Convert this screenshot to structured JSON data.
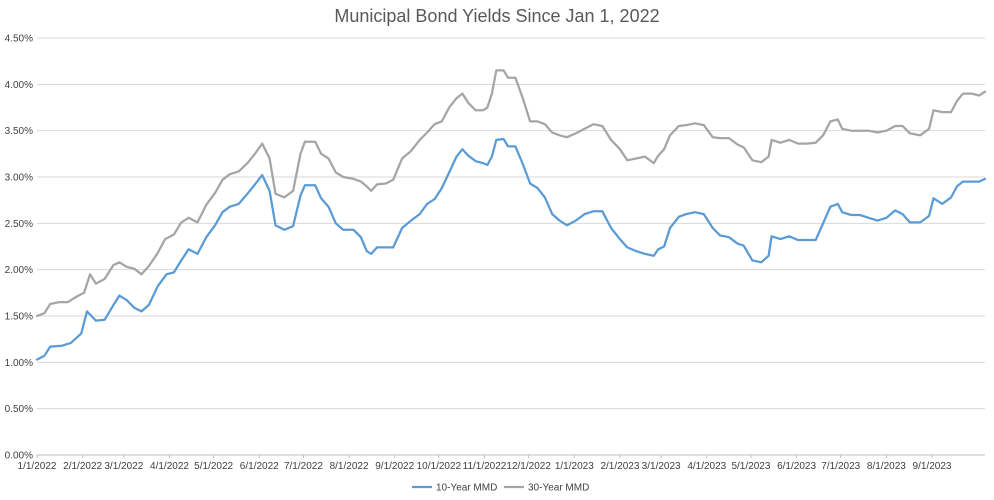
{
  "chart_data": {
    "type": "line",
    "title": "Municipal Bond Yields Since Jan 1, 2022",
    "xlabel": "",
    "ylabel": "",
    "ylim": [
      0,
      4.5
    ],
    "ytick_values": [
      0,
      0.5,
      1.0,
      1.5,
      2.0,
      2.5,
      3.0,
      3.5,
      4.0,
      4.5
    ],
    "ytick_labels": [
      "0.00%",
      "0.50%",
      "1.00%",
      "1.50%",
      "2.00%",
      "2.50%",
      "3.00%",
      "3.50%",
      "4.00%",
      "4.50%"
    ],
    "x_dates": [
      "2022-01-01",
      "2022-02-01",
      "2022-03-01",
      "2022-04-01",
      "2022-05-01",
      "2022-06-01",
      "2022-07-01",
      "2022-08-01",
      "2022-09-01",
      "2022-10-01",
      "2022-11-01",
      "2022-12-01",
      "2023-01-01",
      "2023-02-01",
      "2023-03-01",
      "2023-04-01",
      "2023-05-01",
      "2023-06-01",
      "2023-07-01",
      "2023-08-01",
      "2023-09-01"
    ],
    "xtick_labels": [
      "1/1/2022",
      "2/1/2022",
      "3/1/2022",
      "4/1/2022",
      "5/1/2022",
      "6/1/2022",
      "7/1/2022",
      "8/1/2022",
      "9/1/2022",
      "10/1/2022",
      "11/1/2022",
      "12/1/2022",
      "1/1/2023",
      "2/1/2023",
      "3/1/2023",
      "4/1/2023",
      "5/1/2023",
      "6/1/2023",
      "7/1/2023",
      "8/1/2023",
      "9/1/2023"
    ],
    "grid": true,
    "legend_position": "bottom",
    "series": [
      {
        "name": "10-Year MMD",
        "color": "#5b9bd5",
        "points": [
          [
            "2022-01-01",
            1.03
          ],
          [
            "2022-01-06",
            1.07
          ],
          [
            "2022-01-10",
            1.17
          ],
          [
            "2022-01-18",
            1.18
          ],
          [
            "2022-01-24",
            1.21
          ],
          [
            "2022-01-31",
            1.31
          ],
          [
            "2022-02-04",
            1.55
          ],
          [
            "2022-02-10",
            1.45
          ],
          [
            "2022-02-16",
            1.46
          ],
          [
            "2022-02-22",
            1.62
          ],
          [
            "2022-02-26",
            1.72
          ],
          [
            "2022-03-03",
            1.67
          ],
          [
            "2022-03-08",
            1.59
          ],
          [
            "2022-03-13",
            1.55
          ],
          [
            "2022-03-18",
            1.62
          ],
          [
            "2022-03-24",
            1.82
          ],
          [
            "2022-03-30",
            1.95
          ],
          [
            "2022-04-04",
            1.97
          ],
          [
            "2022-04-09",
            2.1
          ],
          [
            "2022-04-14",
            2.22
          ],
          [
            "2022-04-20",
            2.17
          ],
          [
            "2022-04-26",
            2.35
          ],
          [
            "2022-05-02",
            2.48
          ],
          [
            "2022-05-07",
            2.62
          ],
          [
            "2022-05-12",
            2.68
          ],
          [
            "2022-05-18",
            2.71
          ],
          [
            "2022-05-24",
            2.82
          ],
          [
            "2022-05-29",
            2.92
          ],
          [
            "2022-06-03",
            3.02
          ],
          [
            "2022-06-08",
            2.85
          ],
          [
            "2022-06-12",
            2.48
          ],
          [
            "2022-06-18",
            2.43
          ],
          [
            "2022-06-24",
            2.47
          ],
          [
            "2022-06-29",
            2.8
          ],
          [
            "2022-07-02",
            2.91
          ],
          [
            "2022-07-09",
            2.91
          ],
          [
            "2022-07-13",
            2.77
          ],
          [
            "2022-07-18",
            2.68
          ],
          [
            "2022-07-23",
            2.5
          ],
          [
            "2022-07-28",
            2.43
          ],
          [
            "2022-08-04",
            2.43
          ],
          [
            "2022-08-09",
            2.35
          ],
          [
            "2022-08-13",
            2.2
          ],
          [
            "2022-08-16",
            2.17
          ],
          [
            "2022-08-20",
            2.24
          ],
          [
            "2022-08-26",
            2.24
          ],
          [
            "2022-08-31",
            2.24
          ],
          [
            "2022-09-06",
            2.45
          ],
          [
            "2022-09-12",
            2.53
          ],
          [
            "2022-09-18",
            2.6
          ],
          [
            "2022-09-23",
            2.71
          ],
          [
            "2022-09-28",
            2.76
          ],
          [
            "2022-10-03",
            2.88
          ],
          [
            "2022-10-08",
            3.05
          ],
          [
            "2022-10-13",
            3.22
          ],
          [
            "2022-10-17",
            3.3
          ],
          [
            "2022-10-21",
            3.23
          ],
          [
            "2022-10-26",
            3.17
          ],
          [
            "2022-10-31",
            3.15
          ],
          [
            "2022-11-03",
            3.13
          ],
          [
            "2022-11-06",
            3.22
          ],
          [
            "2022-11-09",
            3.4
          ],
          [
            "2022-11-14",
            3.41
          ],
          [
            "2022-11-17",
            3.33
          ],
          [
            "2022-11-22",
            3.33
          ],
          [
            "2022-11-27",
            3.14
          ],
          [
            "2022-12-02",
            2.93
          ],
          [
            "2022-12-07",
            2.88
          ],
          [
            "2022-12-12",
            2.78
          ],
          [
            "2022-12-17",
            2.6
          ],
          [
            "2022-12-22",
            2.53
          ],
          [
            "2022-12-27",
            2.48
          ],
          [
            "2023-01-02",
            2.53
          ],
          [
            "2023-01-08",
            2.6
          ],
          [
            "2023-01-14",
            2.63
          ],
          [
            "2023-01-20",
            2.63
          ],
          [
            "2023-01-26",
            2.45
          ],
          [
            "2023-02-01",
            2.33
          ],
          [
            "2023-02-06",
            2.24
          ],
          [
            "2023-02-12",
            2.2
          ],
          [
            "2023-02-18",
            2.17
          ],
          [
            "2023-02-24",
            2.15
          ],
          [
            "2023-02-27",
            2.22
          ],
          [
            "2023-03-03",
            2.25
          ],
          [
            "2023-03-07",
            2.45
          ],
          [
            "2023-03-13",
            2.57
          ],
          [
            "2023-03-18",
            2.6
          ],
          [
            "2023-03-24",
            2.62
          ],
          [
            "2023-03-30",
            2.6
          ],
          [
            "2023-04-05",
            2.45
          ],
          [
            "2023-04-10",
            2.37
          ],
          [
            "2023-04-16",
            2.35
          ],
          [
            "2023-04-22",
            2.28
          ],
          [
            "2023-04-26",
            2.26
          ],
          [
            "2023-05-02",
            2.1
          ],
          [
            "2023-05-08",
            2.08
          ],
          [
            "2023-05-13",
            2.15
          ],
          [
            "2023-05-15",
            2.36
          ],
          [
            "2023-05-21",
            2.33
          ],
          [
            "2023-05-27",
            2.36
          ],
          [
            "2023-06-02",
            2.32
          ],
          [
            "2023-06-08",
            2.32
          ],
          [
            "2023-06-14",
            2.32
          ],
          [
            "2023-06-19",
            2.5
          ],
          [
            "2023-06-24",
            2.68
          ],
          [
            "2023-06-29",
            2.71
          ],
          [
            "2023-07-02",
            2.62
          ],
          [
            "2023-07-08",
            2.59
          ],
          [
            "2023-07-14",
            2.59
          ],
          [
            "2023-07-20",
            2.56
          ],
          [
            "2023-07-26",
            2.53
          ],
          [
            "2023-08-01",
            2.56
          ],
          [
            "2023-08-07",
            2.64
          ],
          [
            "2023-08-12",
            2.6
          ],
          [
            "2023-08-17",
            2.51
          ],
          [
            "2023-08-24",
            2.51
          ],
          [
            "2023-08-30",
            2.58
          ],
          [
            "2023-09-02",
            2.77
          ],
          [
            "2023-09-08",
            2.71
          ],
          [
            "2023-09-14",
            2.78
          ],
          [
            "2023-09-18",
            2.9
          ],
          [
            "2023-09-22",
            2.95
          ],
          [
            "2023-09-28",
            2.95
          ],
          [
            "2023-10-03",
            2.95
          ],
          [
            "2023-10-07",
            2.98
          ]
        ]
      },
      {
        "name": "30-Year MMD",
        "color": "#a5a5a5",
        "points": [
          [
            "2022-01-01",
            1.5
          ],
          [
            "2022-01-06",
            1.53
          ],
          [
            "2022-01-10",
            1.63
          ],
          [
            "2022-01-16",
            1.65
          ],
          [
            "2022-01-22",
            1.65
          ],
          [
            "2022-01-28",
            1.71
          ],
          [
            "2022-02-02",
            1.75
          ],
          [
            "2022-02-06",
            1.95
          ],
          [
            "2022-02-10",
            1.85
          ],
          [
            "2022-02-16",
            1.9
          ],
          [
            "2022-02-22",
            2.05
          ],
          [
            "2022-02-26",
            2.08
          ],
          [
            "2022-03-03",
            2.03
          ],
          [
            "2022-03-08",
            2.01
          ],
          [
            "2022-03-13",
            1.95
          ],
          [
            "2022-03-18",
            2.04
          ],
          [
            "2022-03-24",
            2.18
          ],
          [
            "2022-03-29",
            2.33
          ],
          [
            "2022-04-04",
            2.38
          ],
          [
            "2022-04-09",
            2.51
          ],
          [
            "2022-04-14",
            2.56
          ],
          [
            "2022-04-20",
            2.51
          ],
          [
            "2022-04-26",
            2.7
          ],
          [
            "2022-05-02",
            2.83
          ],
          [
            "2022-05-07",
            2.97
          ],
          [
            "2022-05-12",
            3.03
          ],
          [
            "2022-05-18",
            3.06
          ],
          [
            "2022-05-24",
            3.15
          ],
          [
            "2022-05-29",
            3.25
          ],
          [
            "2022-06-03",
            3.36
          ],
          [
            "2022-06-08",
            3.2
          ],
          [
            "2022-06-12",
            2.82
          ],
          [
            "2022-06-18",
            2.78
          ],
          [
            "2022-06-24",
            2.85
          ],
          [
            "2022-06-29",
            3.25
          ],
          [
            "2022-07-02",
            3.38
          ],
          [
            "2022-07-09",
            3.38
          ],
          [
            "2022-07-13",
            3.25
          ],
          [
            "2022-07-18",
            3.2
          ],
          [
            "2022-07-23",
            3.05
          ],
          [
            "2022-07-28",
            3.0
          ],
          [
            "2022-08-04",
            2.98
          ],
          [
            "2022-08-09",
            2.95
          ],
          [
            "2022-08-13",
            2.9
          ],
          [
            "2022-08-16",
            2.85
          ],
          [
            "2022-08-20",
            2.92
          ],
          [
            "2022-08-26",
            2.93
          ],
          [
            "2022-08-31",
            2.97
          ],
          [
            "2022-09-06",
            3.2
          ],
          [
            "2022-09-12",
            3.28
          ],
          [
            "2022-09-18",
            3.4
          ],
          [
            "2022-09-23",
            3.48
          ],
          [
            "2022-09-28",
            3.57
          ],
          [
            "2022-10-03",
            3.6
          ],
          [
            "2022-10-08",
            3.75
          ],
          [
            "2022-10-13",
            3.85
          ],
          [
            "2022-10-17",
            3.9
          ],
          [
            "2022-10-21",
            3.8
          ],
          [
            "2022-10-26",
            3.72
          ],
          [
            "2022-10-31",
            3.72
          ],
          [
            "2022-11-03",
            3.75
          ],
          [
            "2022-11-06",
            3.9
          ],
          [
            "2022-11-09",
            4.15
          ],
          [
            "2022-11-14",
            4.15
          ],
          [
            "2022-11-17",
            4.07
          ],
          [
            "2022-11-22",
            4.07
          ],
          [
            "2022-11-27",
            3.85
          ],
          [
            "2022-12-02",
            3.6
          ],
          [
            "2022-12-07",
            3.6
          ],
          [
            "2022-12-12",
            3.57
          ],
          [
            "2022-12-17",
            3.48
          ],
          [
            "2022-12-22",
            3.45
          ],
          [
            "2022-12-27",
            3.43
          ],
          [
            "2023-01-02",
            3.47
          ],
          [
            "2023-01-08",
            3.52
          ],
          [
            "2023-01-14",
            3.57
          ],
          [
            "2023-01-20",
            3.55
          ],
          [
            "2023-01-26",
            3.4
          ],
          [
            "2023-02-01",
            3.3
          ],
          [
            "2023-02-06",
            3.18
          ],
          [
            "2023-02-12",
            3.2
          ],
          [
            "2023-02-18",
            3.22
          ],
          [
            "2023-02-24",
            3.15
          ],
          [
            "2023-02-27",
            3.23
          ],
          [
            "2023-03-03",
            3.3
          ],
          [
            "2023-03-07",
            3.45
          ],
          [
            "2023-03-13",
            3.55
          ],
          [
            "2023-03-18",
            3.56
          ],
          [
            "2023-03-24",
            3.58
          ],
          [
            "2023-03-30",
            3.56
          ],
          [
            "2023-04-05",
            3.43
          ],
          [
            "2023-04-10",
            3.42
          ],
          [
            "2023-04-16",
            3.42
          ],
          [
            "2023-04-22",
            3.35
          ],
          [
            "2023-04-26",
            3.32
          ],
          [
            "2023-05-02",
            3.18
          ],
          [
            "2023-05-08",
            3.16
          ],
          [
            "2023-05-13",
            3.22
          ],
          [
            "2023-05-15",
            3.4
          ],
          [
            "2023-05-21",
            3.37
          ],
          [
            "2023-05-27",
            3.4
          ],
          [
            "2023-06-02",
            3.36
          ],
          [
            "2023-06-08",
            3.36
          ],
          [
            "2023-06-14",
            3.37
          ],
          [
            "2023-06-19",
            3.45
          ],
          [
            "2023-06-24",
            3.6
          ],
          [
            "2023-06-29",
            3.62
          ],
          [
            "2023-07-02",
            3.52
          ],
          [
            "2023-07-08",
            3.5
          ],
          [
            "2023-07-14",
            3.5
          ],
          [
            "2023-07-20",
            3.5
          ],
          [
            "2023-07-26",
            3.48
          ],
          [
            "2023-08-01",
            3.5
          ],
          [
            "2023-08-07",
            3.55
          ],
          [
            "2023-08-12",
            3.55
          ],
          [
            "2023-08-17",
            3.47
          ],
          [
            "2023-08-24",
            3.45
          ],
          [
            "2023-08-30",
            3.52
          ],
          [
            "2023-09-02",
            3.72
          ],
          [
            "2023-09-08",
            3.7
          ],
          [
            "2023-09-14",
            3.7
          ],
          [
            "2023-09-18",
            3.82
          ],
          [
            "2023-09-22",
            3.9
          ],
          [
            "2023-09-28",
            3.9
          ],
          [
            "2023-10-03",
            3.88
          ],
          [
            "2023-10-07",
            3.92
          ]
        ]
      }
    ]
  }
}
